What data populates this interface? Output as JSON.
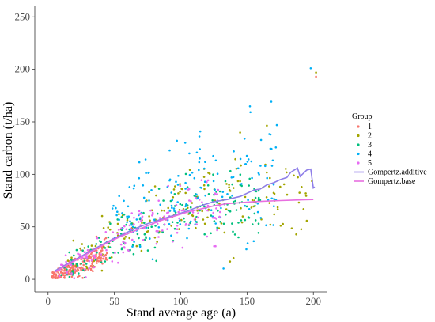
{
  "chart_data": {
    "type": "scatter",
    "xlabel": "Stand average age (a)",
    "ylabel": "Stand carbon (t/ha)",
    "xlim": [
      -10,
      210
    ],
    "ylim": [
      -12,
      260
    ],
    "x_ticks": [
      0,
      50,
      100,
      150,
      200
    ],
    "y_ticks": [
      0,
      50,
      100,
      150,
      200,
      250
    ],
    "grid": false,
    "legend_position": "right",
    "legend_title": "Group",
    "groups": [
      {
        "name": "1",
        "color": "#F8766D"
      },
      {
        "name": "2",
        "color": "#A3A500"
      },
      {
        "name": "3",
        "color": "#00BF7D"
      },
      {
        "name": "4",
        "color": "#00B0F6"
      },
      {
        "name": "5",
        "color": "#E76BF3"
      }
    ],
    "scatter_counts": [
      210,
      180,
      190,
      170,
      150
    ],
    "series": [
      {
        "name": "Gompertz.additive",
        "color": "#8F7FE8",
        "x": [
          5,
          15,
          25,
          35,
          45,
          55,
          65,
          75,
          85,
          95,
          105,
          115,
          125,
          135,
          145,
          155,
          160,
          165,
          170,
          175,
          180,
          183,
          188,
          190,
          195,
          198,
          200,
          201
        ],
        "y": [
          8,
          15,
          22,
          29,
          36,
          42,
          48,
          53,
          57,
          61,
          65,
          70,
          74,
          76,
          79,
          85,
          86,
          90,
          92,
          95,
          97,
          102,
          106,
          98,
          104,
          105,
          87,
          88
        ]
      },
      {
        "name": "Gompertz.base",
        "color": "#E86FE0",
        "x": [
          5,
          15,
          25,
          35,
          45,
          55,
          65,
          75,
          85,
          95,
          105,
          115,
          125,
          135,
          145,
          155,
          165,
          175,
          185,
          200
        ],
        "y": [
          7,
          14,
          21,
          28,
          35,
          41,
          46,
          51,
          56,
          60,
          64,
          67,
          70,
          72,
          73,
          74,
          74.5,
          75,
          75.5,
          76
        ]
      }
    ]
  }
}
